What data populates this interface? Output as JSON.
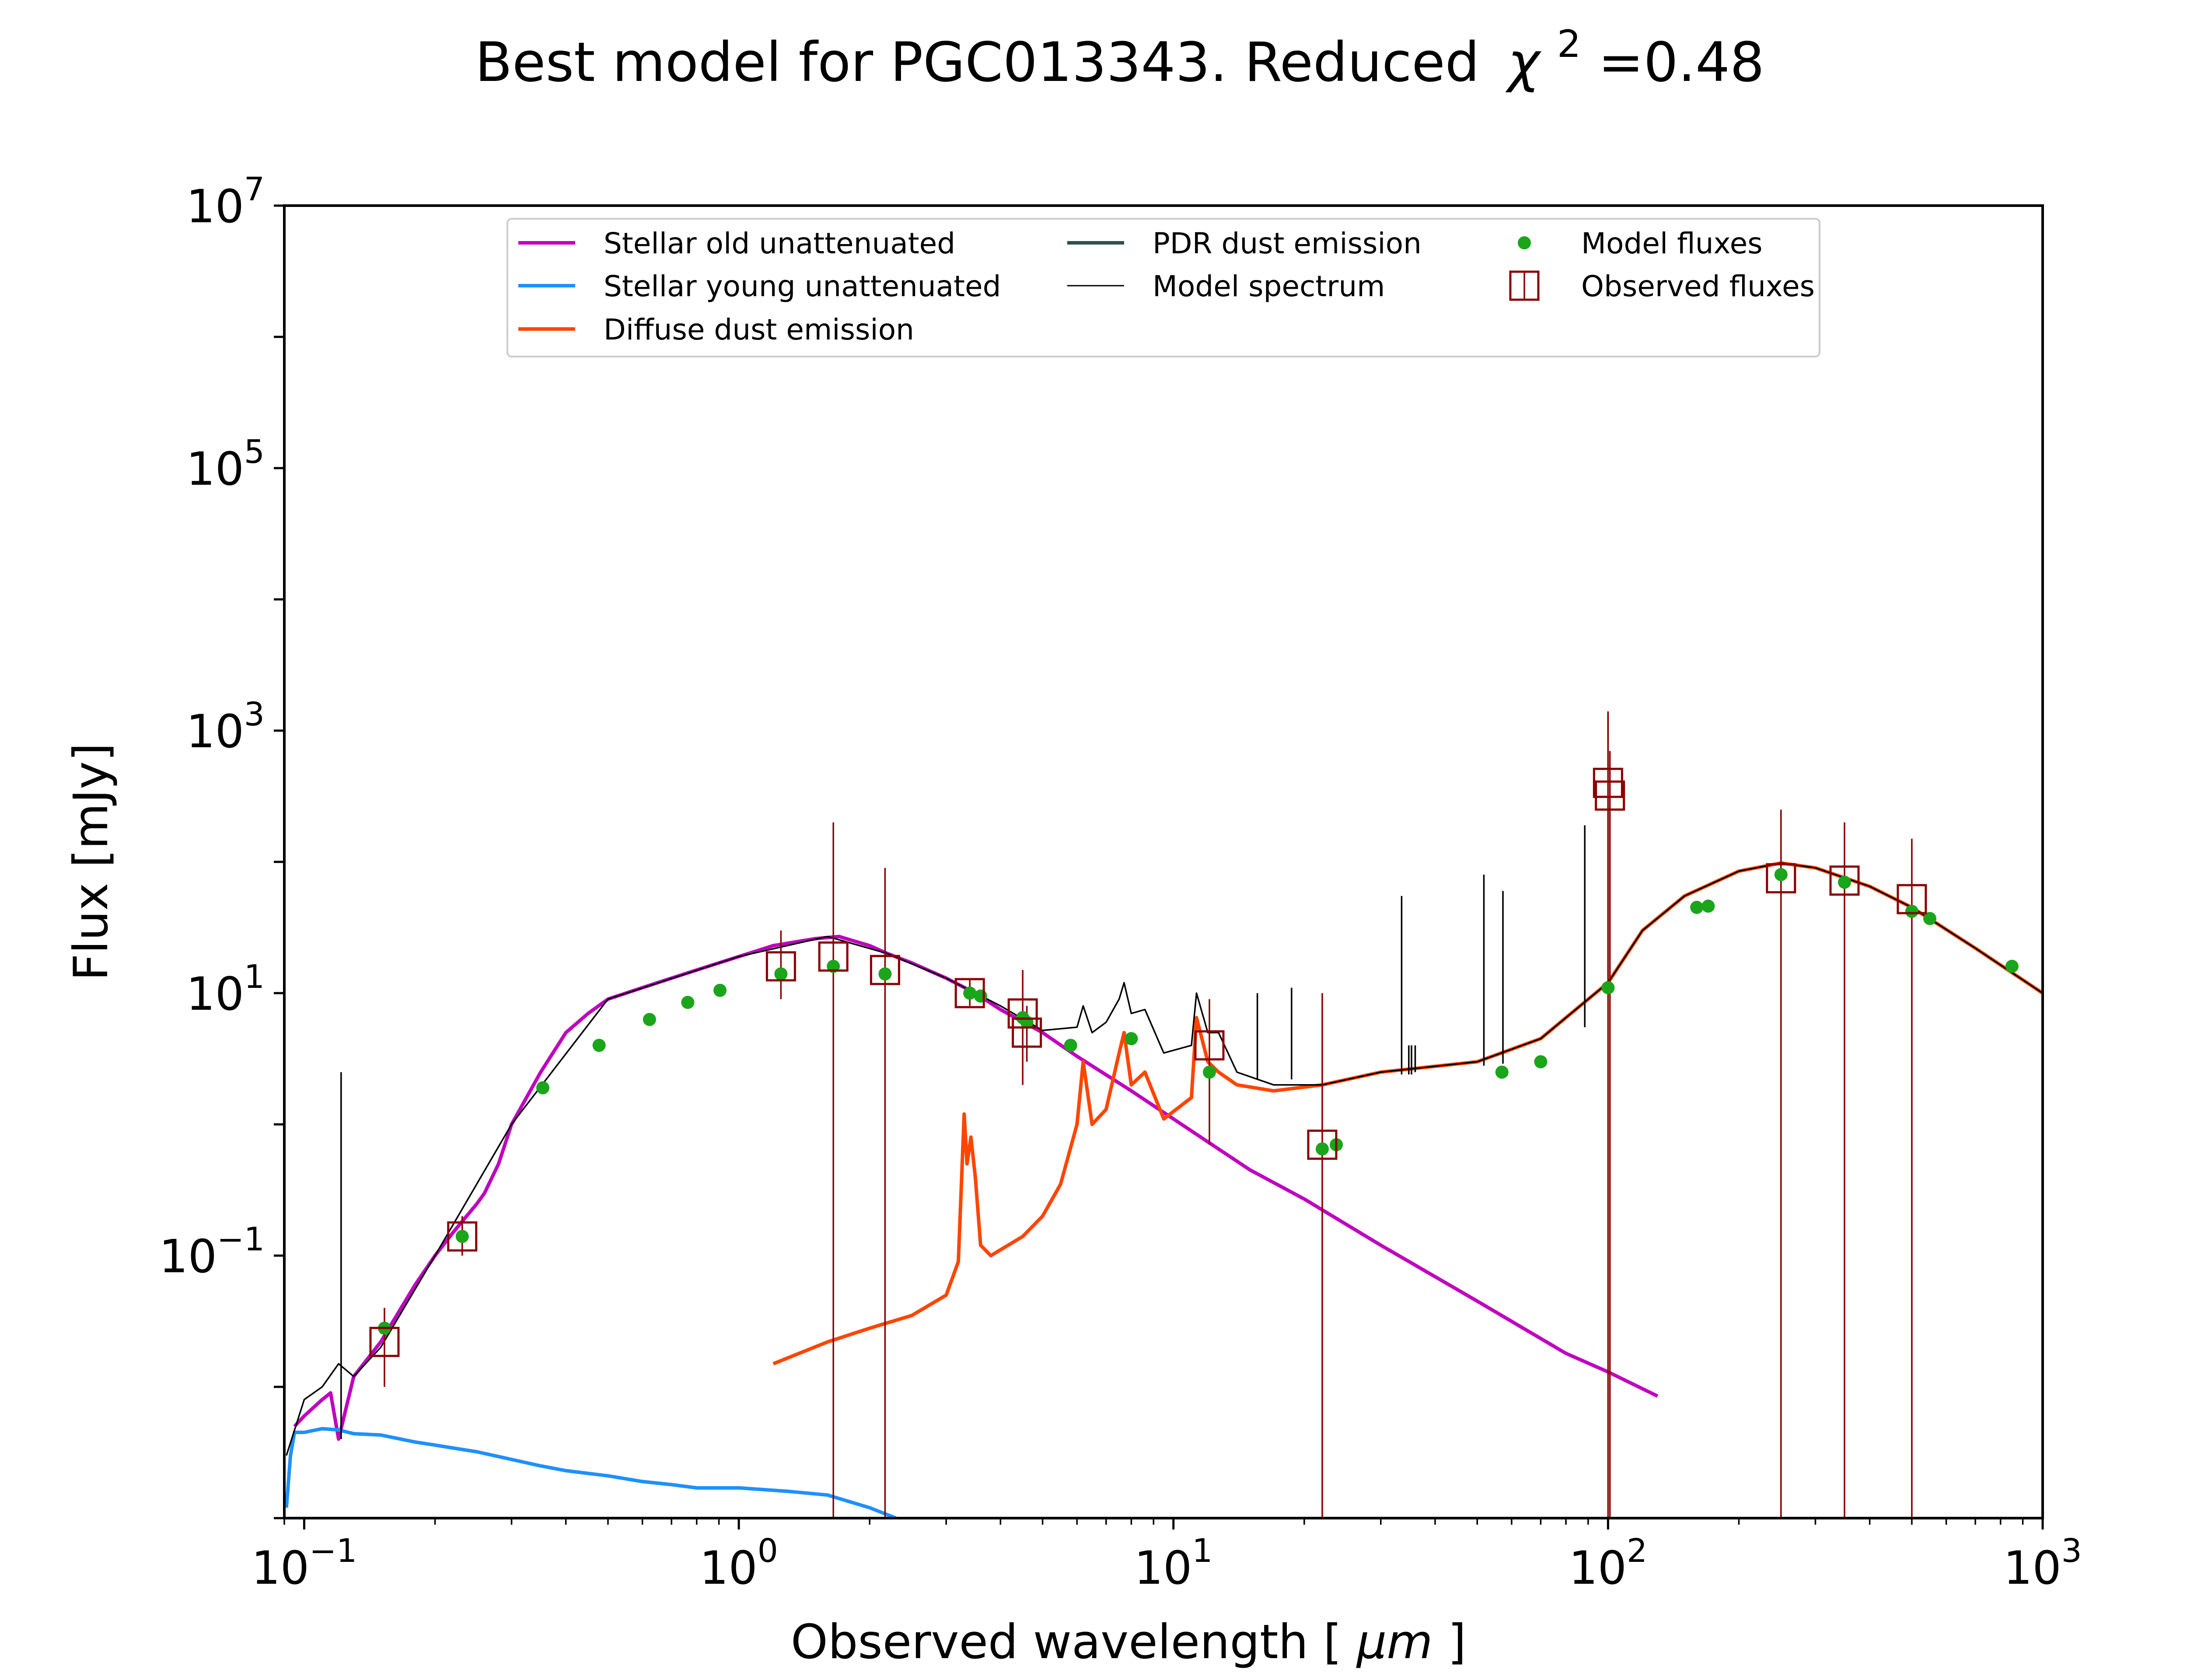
{
  "chart_data": {
    "type": "line",
    "title": "Best model for PGC013343. Reduced",
    "title_chi": "χ",
    "title_chi_exp": "2",
    "title_value": "=0.48",
    "xlabel": "Observed wavelength [",
    "xlabel_unit": "μm",
    "xlabel_close": "]",
    "ylabel": "Flux [mJy]",
    "x_scale": "log",
    "y_scale": "log",
    "xlim": [
      0.09,
      1000
    ],
    "ylim": [
      0.001,
      10000000
    ],
    "grid": false,
    "legend_position": "top-center",
    "x_ticks": [
      {
        "value": 0.1,
        "base": "10",
        "exp": "−1"
      },
      {
        "value": 1,
        "base": "10",
        "exp": "0"
      },
      {
        "value": 10,
        "base": "10",
        "exp": "1"
      },
      {
        "value": 100,
        "base": "10",
        "exp": "2"
      },
      {
        "value": 1000,
        "base": "10",
        "exp": "3"
      }
    ],
    "y_ticks": [
      {
        "value": 0.1,
        "base": "10",
        "exp": "−1"
      },
      {
        "value": 10,
        "base": "10",
        "exp": "1"
      },
      {
        "value": 1000,
        "base": "10",
        "exp": "3"
      },
      {
        "value": 100000,
        "base": "10",
        "exp": "5"
      },
      {
        "value": 10000000,
        "base": "10",
        "exp": "7"
      }
    ],
    "legend": [
      {
        "label": "Stellar old unattenuated",
        "kind": "line",
        "color": "#bf00bf",
        "width": 8
      },
      {
        "label": "Stellar young unattenuated",
        "kind": "line",
        "color": "#1e90ff",
        "width": 8
      },
      {
        "label": "Diffuse dust emission",
        "kind": "line",
        "color": "#ff4500",
        "width": 8
      },
      {
        "label": "PDR dust emission",
        "kind": "line",
        "color": "#2f4f4f",
        "width": 8
      },
      {
        "label": "Model spectrum",
        "kind": "line",
        "color": "#000000",
        "width": 3
      },
      {
        "label": "Model fluxes",
        "kind": "dot",
        "color": "#1aa51a"
      },
      {
        "label": "Observed fluxes",
        "kind": "square",
        "color": "#8b0000"
      }
    ],
    "series": [
      {
        "name": "Stellar old unattenuated",
        "color": "#bf00bf",
        "x": [
          0.095,
          0.1,
          0.11,
          0.115,
          0.12,
          0.13,
          0.15,
          0.18,
          0.2,
          0.22,
          0.25,
          0.26,
          0.28,
          0.3,
          0.35,
          0.4,
          0.45,
          0.5,
          0.6,
          0.7,
          0.8,
          0.9,
          1.0,
          1.2,
          1.5,
          1.7,
          2.0,
          2.2,
          2.5,
          3.0,
          3.5,
          4.0,
          5.0,
          6.0,
          8.0,
          10,
          15,
          20,
          30,
          50,
          80,
          100,
          130
        ],
        "y": [
          0.005,
          0.006,
          0.008,
          0.009,
          0.004,
          0.012,
          0.022,
          0.06,
          0.1,
          0.15,
          0.25,
          0.3,
          0.5,
          1.0,
          2.5,
          5.0,
          7.0,
          9.0,
          11,
          13,
          15,
          17,
          19,
          23,
          26,
          27,
          23,
          20,
          17,
          13,
          10,
          7.5,
          5.0,
          3.3,
          1.8,
          1.1,
          0.45,
          0.27,
          0.12,
          0.045,
          0.018,
          0.013,
          0.0085
        ]
      },
      {
        "name": "Stellar young unattenuated",
        "color": "#1e90ff",
        "x": [
          0.091,
          0.093,
          0.095,
          0.1,
          0.11,
          0.12,
          0.13,
          0.15,
          0.18,
          0.2,
          0.25,
          0.3,
          0.35,
          0.4,
          0.5,
          0.6,
          0.7,
          0.8,
          1.0,
          1.3,
          1.6,
          2.0,
          2.3
        ],
        "y": [
          0.0012,
          0.003,
          0.0045,
          0.0045,
          0.0048,
          0.0047,
          0.0044,
          0.0043,
          0.0038,
          0.0036,
          0.0032,
          0.0028,
          0.0025,
          0.0023,
          0.0021,
          0.0019,
          0.0018,
          0.0017,
          0.0017,
          0.0016,
          0.0015,
          0.0012,
          0.001
        ]
      },
      {
        "name": "Diffuse dust emission",
        "color": "#ff4500",
        "x": [
          1.2,
          1.6,
          2.0,
          2.5,
          3.0,
          3.2,
          3.3,
          3.35,
          3.42,
          3.5,
          3.6,
          3.8,
          4.5,
          5.0,
          5.5,
          6.0,
          6.2,
          6.5,
          7.0,
          7.5,
          7.7,
          8.0,
          8.6,
          9.5,
          11.0,
          11.3,
          12.0,
          12.7,
          14.0,
          17.0,
          22.0,
          30.0,
          50.0,
          70.0,
          80.0,
          100,
          120,
          150,
          200,
          250,
          300,
          400,
          500,
          700,
          1000
        ],
        "y": [
          0.015,
          0.022,
          0.028,
          0.035,
          0.05,
          0.09,
          1.2,
          0.5,
          0.8,
          0.4,
          0.12,
          0.1,
          0.14,
          0.2,
          0.35,
          1.0,
          3.0,
          1.0,
          1.3,
          3.5,
          5.0,
          2.0,
          2.5,
          1.1,
          1.6,
          6.5,
          3.0,
          2.5,
          2.0,
          1.8,
          2.0,
          2.5,
          3.0,
          4.5,
          6.5,
          12,
          30,
          55,
          85,
          98,
          90,
          65,
          45,
          22,
          10
        ]
      },
      {
        "name": "Model spectrum",
        "color": "#000000",
        "x": [
          0.091,
          0.1,
          0.11,
          0.12,
          0.13,
          0.15,
          0.2,
          0.3,
          0.5,
          1.0,
          1.6,
          2.2,
          3.0,
          4.0,
          5.0,
          6.0,
          6.2,
          6.5,
          7.0,
          7.5,
          7.7,
          8.0,
          8.6,
          9.5,
          11.0,
          11.3,
          12.0,
          12.7,
          14.0,
          17.0,
          22.0,
          30.0,
          50.0,
          70.0,
          80.0,
          100,
          120,
          150,
          200,
          250,
          300,
          400,
          500,
          700,
          1000
        ],
        "y": [
          0.003,
          0.008,
          0.01,
          0.015,
          0.012,
          0.02,
          0.1,
          1.0,
          9.0,
          19,
          27,
          20,
          13,
          8.0,
          5.2,
          5.5,
          8.0,
          5.0,
          6.0,
          9.0,
          12,
          7.0,
          7.5,
          3.5,
          4.0,
          10,
          5.0,
          5.0,
          2.5,
          2.0,
          2.0,
          2.5,
          3.0,
          4.5,
          6.5,
          12,
          30,
          55,
          85,
          98,
          90,
          65,
          45,
          22,
          10
        ]
      }
    ],
    "emission_lines": [
      {
        "x": 0.1216,
        "y1": 0.004,
        "y2": 2.5
      },
      {
        "x": 15.6,
        "y1": 2.2,
        "y2": 10
      },
      {
        "x": 18.7,
        "y1": 2.2,
        "y2": 11
      },
      {
        "x": 33.5,
        "y1": 2.4,
        "y2": 55
      },
      {
        "x": 34.8,
        "y1": 2.4,
        "y2": 4.0
      },
      {
        "x": 35.3,
        "y1": 2.4,
        "y2": 4.0
      },
      {
        "x": 36.0,
        "y1": 2.5,
        "y2": 4.0
      },
      {
        "x": 51.8,
        "y1": 2.8,
        "y2": 80
      },
      {
        "x": 57.3,
        "y1": 2.9,
        "y2": 60
      },
      {
        "x": 88.4,
        "y1": 5.5,
        "y2": 190
      },
      {
        "x": 100.0,
        "y1": 10,
        "y2": 1400
      }
    ],
    "model_fluxes": [
      {
        "x": 0.153,
        "y": 0.028
      },
      {
        "x": 0.231,
        "y": 0.14
      },
      {
        "x": 0.354,
        "y": 1.9
      },
      {
        "x": 0.477,
        "y": 4.0
      },
      {
        "x": 0.623,
        "y": 6.3
      },
      {
        "x": 0.763,
        "y": 8.5
      },
      {
        "x": 0.905,
        "y": 10.5
      },
      {
        "x": 1.25,
        "y": 14
      },
      {
        "x": 1.65,
        "y": 16
      },
      {
        "x": 2.17,
        "y": 14
      },
      {
        "x": 3.4,
        "y": 10
      },
      {
        "x": 3.6,
        "y": 9.5
      },
      {
        "x": 4.5,
        "y": 6.5
      },
      {
        "x": 4.6,
        "y": 6.0
      },
      {
        "x": 5.8,
        "y": 4.0
      },
      {
        "x": 8.0,
        "y": 4.5
      },
      {
        "x": 12.1,
        "y": 2.5
      },
      {
        "x": 22.0,
        "y": 0.65
      },
      {
        "x": 23.7,
        "y": 0.7
      },
      {
        "x": 57.0,
        "y": 2.5
      },
      {
        "x": 70.0,
        "y": 3.0
      },
      {
        "x": 100.0,
        "y": 11
      },
      {
        "x": 160.0,
        "y": 45
      },
      {
        "x": 170.0,
        "y": 46
      },
      {
        "x": 250.0,
        "y": 80
      },
      {
        "x": 350.0,
        "y": 70
      },
      {
        "x": 500.0,
        "y": 42
      },
      {
        "x": 550.0,
        "y": 37
      },
      {
        "x": 850.0,
        "y": 16
      }
    ],
    "observed_fluxes": [
      {
        "x": 0.153,
        "y": 0.022,
        "err_lo": 0.01,
        "err_hi": 0.04
      },
      {
        "x": 0.231,
        "y": 0.14,
        "err_lo": 0.1,
        "err_hi": 0.2
      },
      {
        "x": 1.25,
        "y": 16,
        "err_lo": 9,
        "err_hi": 30
      },
      {
        "x": 1.65,
        "y": 19,
        "err_lo": 0.001,
        "err_hi": 200
      },
      {
        "x": 2.17,
        "y": 15,
        "err_lo": 0.001,
        "err_hi": 90
      },
      {
        "x": 3.4,
        "y": 10,
        "err_lo": 8,
        "err_hi": 13
      },
      {
        "x": 4.5,
        "y": 7.0,
        "err_lo": 2.0,
        "err_hi": 15
      },
      {
        "x": 4.6,
        "y": 5.0,
        "err_lo": 3.0,
        "err_hi": 8.0
      },
      {
        "x": 12.1,
        "y": 4.0,
        "err_lo": 0.7,
        "err_hi": 9.0
      },
      {
        "x": 22.0,
        "y": 0.7,
        "err_lo": 0.001,
        "err_hi": 10
      },
      {
        "x": 100.0,
        "y": 400,
        "err_lo": 0.001,
        "err_hi": 1400
      },
      {
        "x": 101.0,
        "y": 320,
        "err_lo": 0.001,
        "err_hi": 700
      },
      {
        "x": 250.0,
        "y": 75,
        "err_lo": 0.001,
        "err_hi": 250
      },
      {
        "x": 350.0,
        "y": 72,
        "err_lo": 0.001,
        "err_hi": 200
      },
      {
        "x": 500.0,
        "y": 52,
        "err_lo": 0.001,
        "err_hi": 150
      }
    ]
  }
}
